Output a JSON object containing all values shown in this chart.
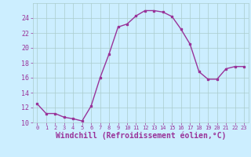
{
  "x": [
    0,
    1,
    2,
    3,
    4,
    5,
    6,
    7,
    8,
    9,
    10,
    11,
    12,
    13,
    14,
    15,
    16,
    17,
    18,
    19,
    20,
    21,
    22,
    23
  ],
  "y": [
    12.5,
    11.2,
    11.2,
    10.7,
    10.5,
    10.2,
    12.2,
    16.0,
    19.2,
    22.8,
    23.2,
    24.3,
    25.0,
    25.0,
    24.8,
    24.2,
    22.5,
    20.5,
    16.8,
    15.8,
    15.8,
    17.2,
    17.5,
    17.5
  ],
  "line_color": "#993399",
  "marker": "s",
  "markersize": 2,
  "linewidth": 1.0,
  "xlabel": "Windchill (Refroidissement éolien,°C)",
  "xlabel_fontsize": 7,
  "bg_color": "#cceeff",
  "grid_color": "#aacccc",
  "tick_color": "#993399",
  "label_color": "#993399",
  "ylim": [
    10,
    26
  ],
  "xlim": [
    -0.5,
    23.5
  ],
  "yticks": [
    10,
    12,
    14,
    16,
    18,
    20,
    22,
    24
  ],
  "xticks": [
    0,
    1,
    2,
    3,
    4,
    5,
    6,
    7,
    8,
    9,
    10,
    11,
    12,
    13,
    14,
    15,
    16,
    17,
    18,
    19,
    20,
    21,
    22,
    23
  ],
  "xtick_labels": [
    "0",
    "1",
    "2",
    "3",
    "4",
    "5",
    "6",
    "7",
    "8",
    "9",
    "10",
    "11",
    "12",
    "13",
    "14",
    "15",
    "16",
    "17",
    "18",
    "19",
    "20",
    "21",
    "22",
    "23"
  ],
  "ytick_labels": [
    "10",
    "12",
    "14",
    "16",
    "18",
    "20",
    "22",
    "24"
  ]
}
